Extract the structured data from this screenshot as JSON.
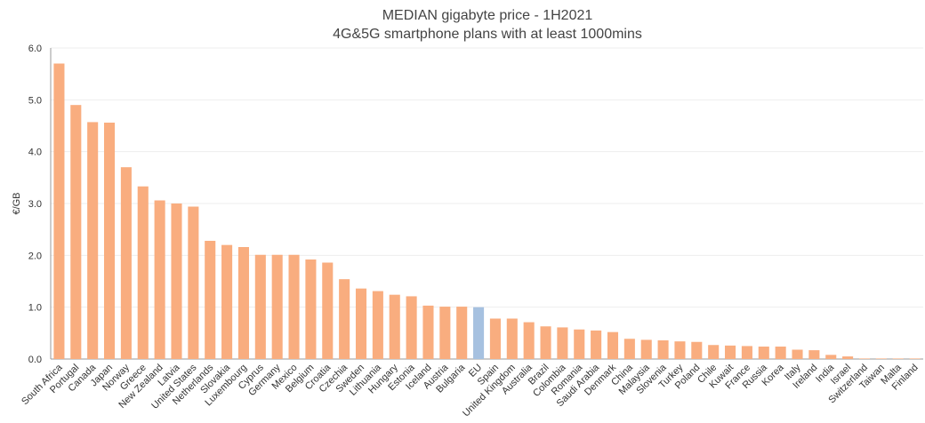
{
  "chart_data": {
    "type": "bar",
    "title": "MEDIAN gigabyte price - 1H2021",
    "subtitle": "4G&5G smartphone plans with at least 1000mins",
    "ylabel": "€/GB",
    "categories": [
      "South Africa",
      "Portugal",
      "Canada",
      "Japan",
      "Norway",
      "Greece",
      "New Zealand",
      "Latvia",
      "United States",
      "Netherlands",
      "Slovakia",
      "Luxembourg",
      "Cyprus",
      "Germany",
      "Mexico",
      "Belgium",
      "Croatia",
      "Czechia",
      "Sweden",
      "Lithuania",
      "Hungary",
      "Estonia",
      "Iceland",
      "Austria",
      "Bulgaria",
      "EU",
      "Spain",
      "United Kingdom",
      "Australia",
      "Brazil",
      "Colombia",
      "Romania",
      "Saudi Arabia",
      "Denmark",
      "China",
      "Malaysia",
      "Slovenia",
      "Turkey",
      "Poland",
      "Chile",
      "Kuwait",
      "France",
      "Russia",
      "Korea",
      "Italy",
      "Ireland",
      "India",
      "Israel",
      "Switzerland",
      "Taiwan",
      "Malta",
      "Finland"
    ],
    "values": [
      5.7,
      4.9,
      4.57,
      4.56,
      3.7,
      3.33,
      3.06,
      3.0,
      2.94,
      2.28,
      2.2,
      2.16,
      2.01,
      2.01,
      2.01,
      1.92,
      1.86,
      1.54,
      1.36,
      1.31,
      1.24,
      1.21,
      1.03,
      1.01,
      1.01,
      1.0,
      0.78,
      0.78,
      0.71,
      0.63,
      0.61,
      0.57,
      0.55,
      0.52,
      0.39,
      0.37,
      0.36,
      0.34,
      0.33,
      0.27,
      0.26,
      0.25,
      0.24,
      0.24,
      0.18,
      0.17,
      0.08,
      0.05,
      0.01,
      0.01,
      0.01,
      0.01
    ],
    "colors": [
      "#f9ad7f",
      "#f9ad7f",
      "#f9ad7f",
      "#f9ad7f",
      "#f9ad7f",
      "#f9ad7f",
      "#f9ad7f",
      "#f9ad7f",
      "#f9ad7f",
      "#f9ad7f",
      "#f9ad7f",
      "#f9ad7f",
      "#f9ad7f",
      "#f9ad7f",
      "#f9ad7f",
      "#f9ad7f",
      "#f9ad7f",
      "#f9ad7f",
      "#f9ad7f",
      "#f9ad7f",
      "#f9ad7f",
      "#f9ad7f",
      "#f9ad7f",
      "#f9ad7f",
      "#f9ad7f",
      "#a6c1e0",
      "#f9ad7f",
      "#f9ad7f",
      "#f9ad7f",
      "#f9ad7f",
      "#f9ad7f",
      "#f9ad7f",
      "#f9ad7f",
      "#f9ad7f",
      "#f9ad7f",
      "#f9ad7f",
      "#f9ad7f",
      "#f9ad7f",
      "#f9ad7f",
      "#f9ad7f",
      "#f9ad7f",
      "#f9ad7f",
      "#f9ad7f",
      "#f9ad7f",
      "#f9ad7f",
      "#f9ad7f",
      "#f9ad7f",
      "#f9ad7f",
      "#f9ad7f",
      "#f9ad7f",
      "#f9ad7f",
      "#f9ad7f"
    ],
    "ylim": [
      0,
      6
    ],
    "yticks": [
      {
        "value": 0,
        "label": "0.0"
      },
      {
        "value": 1,
        "label": "1.0"
      },
      {
        "value": 2,
        "label": "2.0"
      },
      {
        "value": 3,
        "label": "3.0"
      },
      {
        "value": 4,
        "label": "4.0"
      },
      {
        "value": 5,
        "label": "5.0"
      },
      {
        "value": 6,
        "label": "6.0"
      }
    ],
    "grid": true
  }
}
